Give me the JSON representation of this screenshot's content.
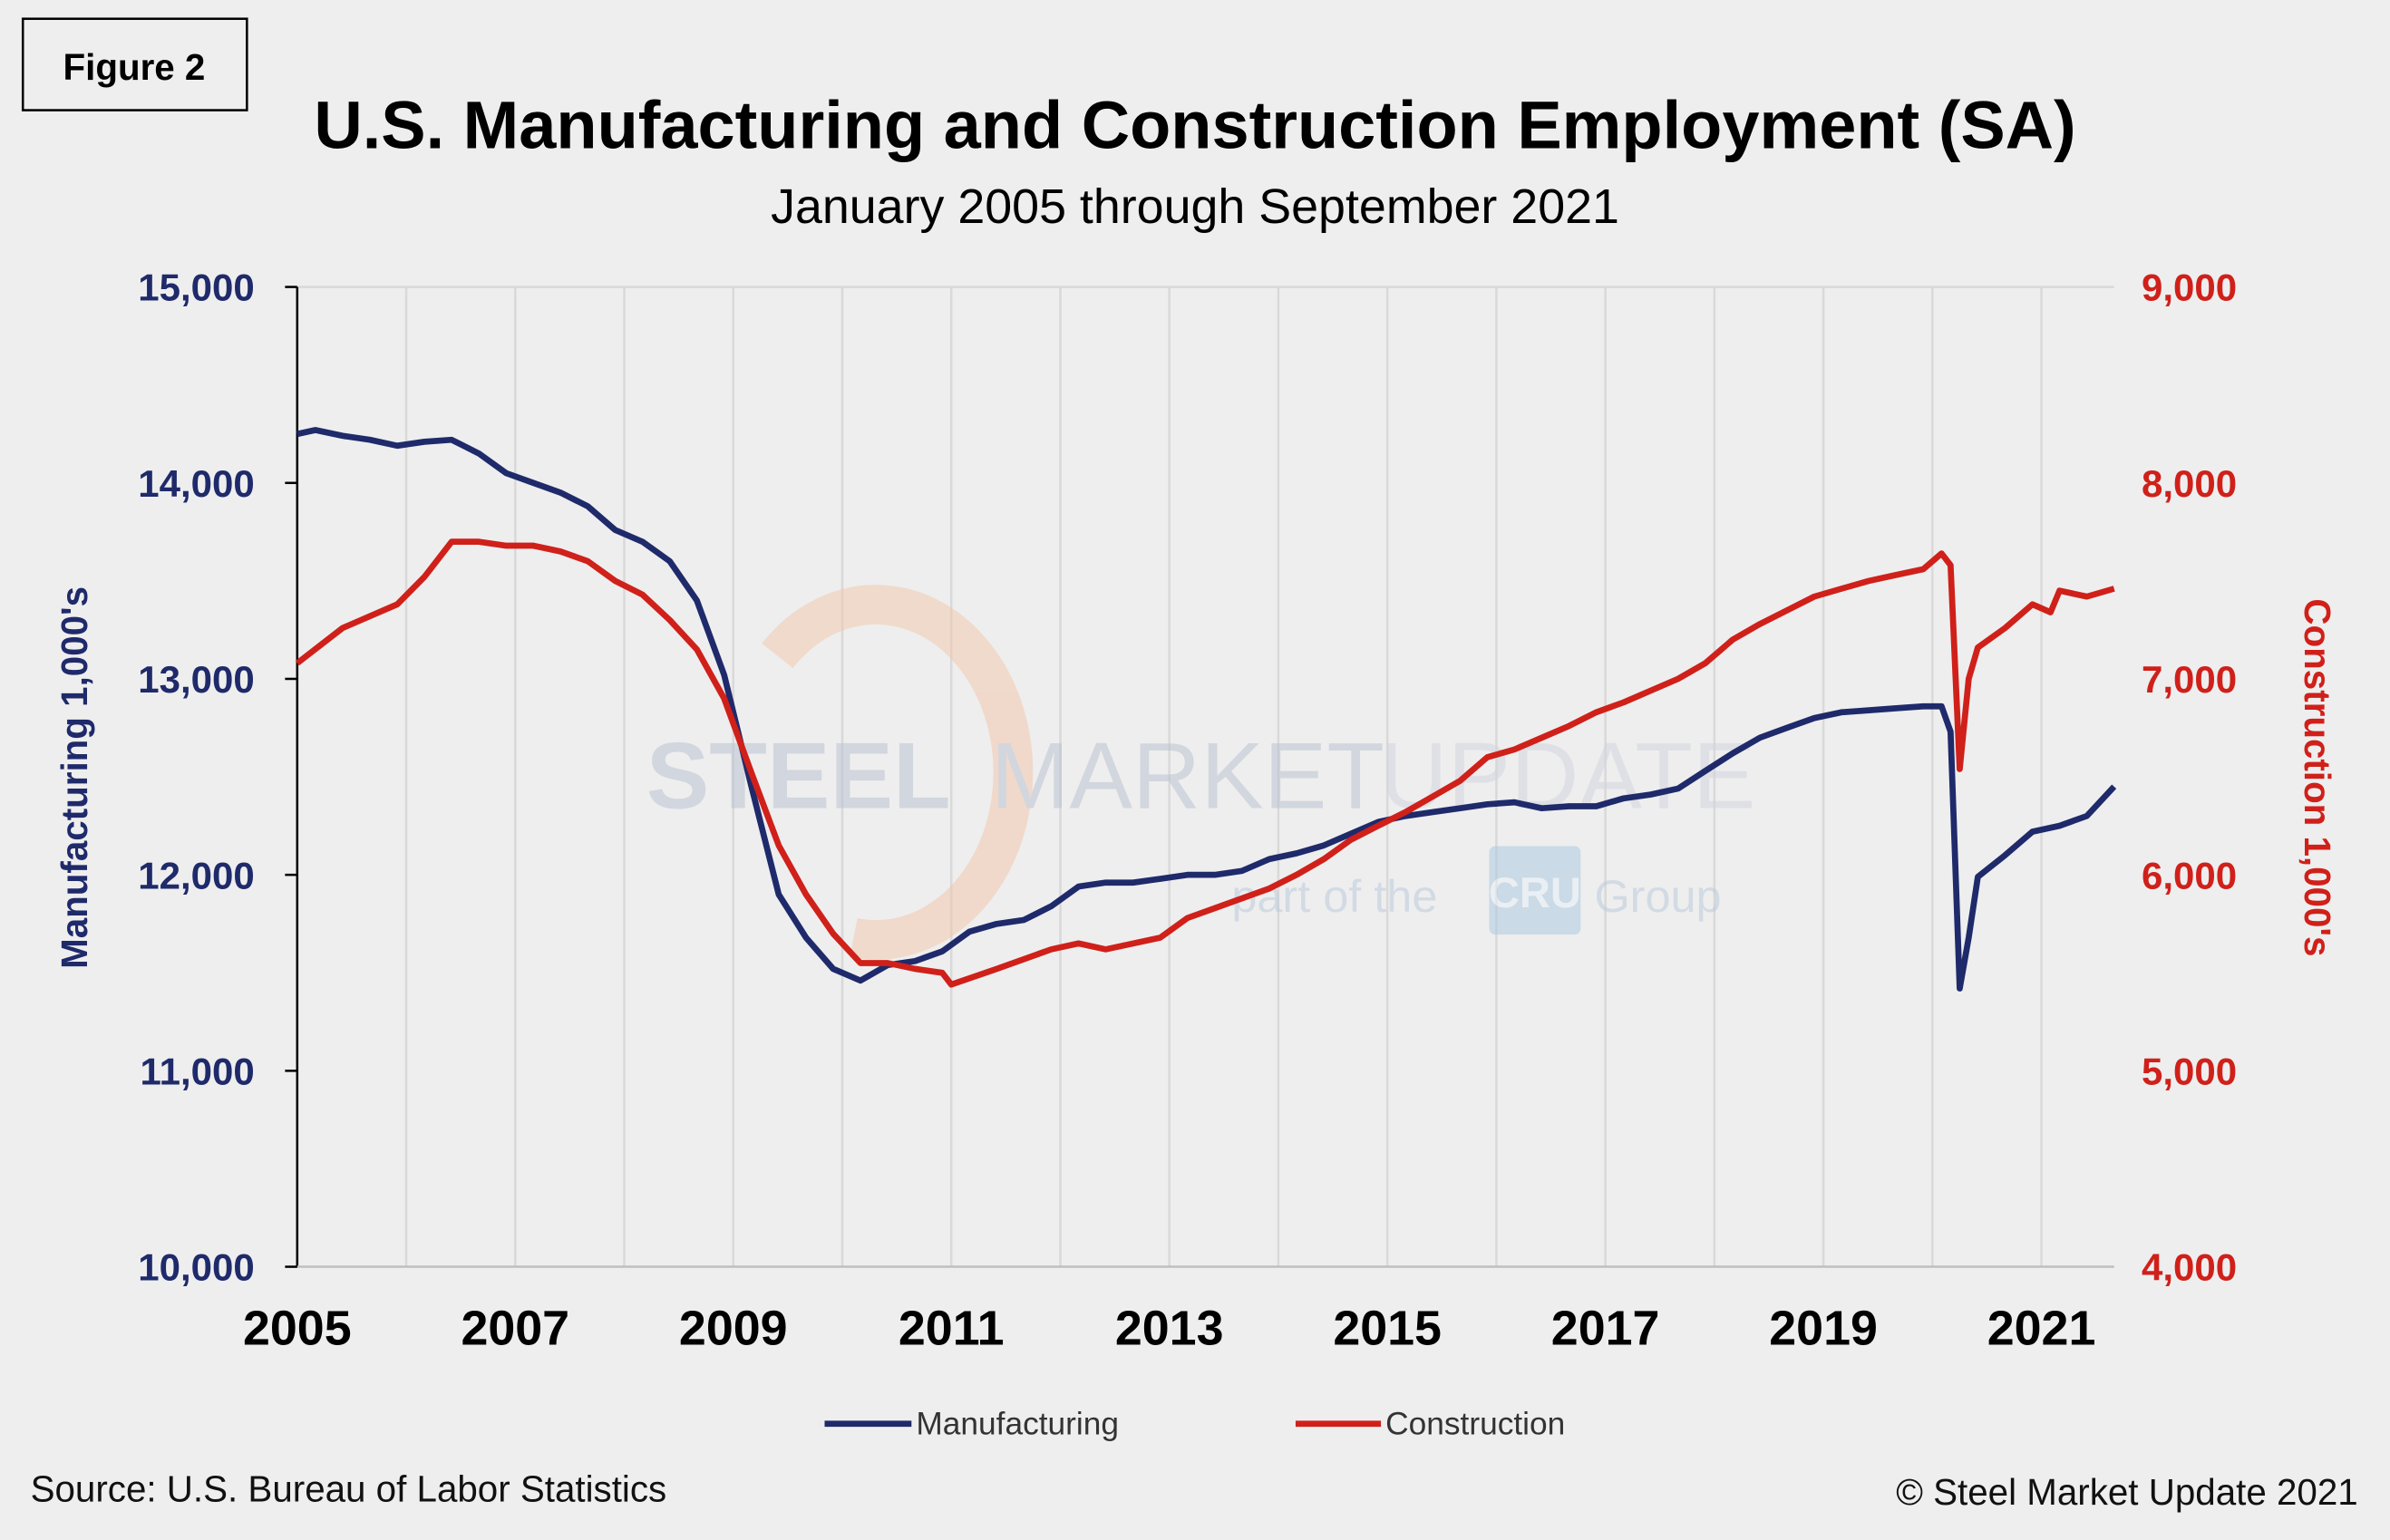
{
  "figure_label": "Figure 2",
  "watermark": {
    "brand": "STEEL MARKET UPDATE",
    "tagline_pre": "part of the",
    "tagline_logo": "CRU",
    "tagline_post": "Group"
  },
  "source": "Source: U.S. Bureau  of Labor Statistics",
  "copyright": "© Steel Market Update 2021",
  "colors": {
    "manufacturing": "#1f2a6b",
    "construction": "#d0201a",
    "background": "#eeeeee",
    "grid": "#d9d9d9"
  },
  "chart_data": {
    "type": "line",
    "title": "U.S. Manufacturing and Construction Employment (SA)",
    "subtitle": "January 2005 through September 2021",
    "ylabel_left": "Manufacturing 1,000's",
    "ylabel_right": "Construction 1,000's",
    "ylim_left": [
      10000,
      15000
    ],
    "ylim_right": [
      4000,
      9000
    ],
    "yticks_left": [
      "10,000",
      "11,000",
      "12,000",
      "13,000",
      "14,000",
      "15,000"
    ],
    "yticks_right": [
      "4,000",
      "5,000",
      "6,000",
      "7,000",
      "8,000",
      "9,000"
    ],
    "xticks": [
      "2005",
      "2007",
      "2009",
      "2011",
      "2013",
      "2015",
      "2017",
      "2019",
      "2021"
    ],
    "xlim": [
      "2005-01",
      "2021-09"
    ],
    "grid": "vertical",
    "legend": "bottom",
    "series": [
      {
        "name": "Manufacturing",
        "axis": "left",
        "points": [
          [
            "2005-01",
            14250
          ],
          [
            "2005-03",
            14270
          ],
          [
            "2005-06",
            14240
          ],
          [
            "2005-09",
            14220
          ],
          [
            "2005-12",
            14190
          ],
          [
            "2006-03",
            14210
          ],
          [
            "2006-06",
            14220
          ],
          [
            "2006-09",
            14150
          ],
          [
            "2006-12",
            14050
          ],
          [
            "2007-03",
            14000
          ],
          [
            "2007-06",
            13950
          ],
          [
            "2007-09",
            13880
          ],
          [
            "2007-12",
            13760
          ],
          [
            "2008-03",
            13700
          ],
          [
            "2008-06",
            13600
          ],
          [
            "2008-09",
            13400
          ],
          [
            "2008-12",
            13020
          ],
          [
            "2009-03",
            12450
          ],
          [
            "2009-06",
            11900
          ],
          [
            "2009-09",
            11680
          ],
          [
            "2009-12",
            11520
          ],
          [
            "2010-03",
            11460
          ],
          [
            "2010-06",
            11540
          ],
          [
            "2010-09",
            11560
          ],
          [
            "2010-12",
            11610
          ],
          [
            "2011-03",
            11710
          ],
          [
            "2011-06",
            11750
          ],
          [
            "2011-09",
            11770
          ],
          [
            "2011-12",
            11840
          ],
          [
            "2012-03",
            11940
          ],
          [
            "2012-06",
            11960
          ],
          [
            "2012-09",
            11960
          ],
          [
            "2012-12",
            11980
          ],
          [
            "2013-03",
            12000
          ],
          [
            "2013-06",
            12000
          ],
          [
            "2013-09",
            12020
          ],
          [
            "2013-12",
            12080
          ],
          [
            "2014-03",
            12110
          ],
          [
            "2014-06",
            12150
          ],
          [
            "2014-09",
            12210
          ],
          [
            "2014-12",
            12270
          ],
          [
            "2015-03",
            12300
          ],
          [
            "2015-06",
            12320
          ],
          [
            "2015-09",
            12340
          ],
          [
            "2015-12",
            12360
          ],
          [
            "2016-03",
            12370
          ],
          [
            "2016-06",
            12340
          ],
          [
            "2016-09",
            12350
          ],
          [
            "2016-12",
            12350
          ],
          [
            "2017-03",
            12390
          ],
          [
            "2017-06",
            12410
          ],
          [
            "2017-09",
            12440
          ],
          [
            "2017-12",
            12530
          ],
          [
            "2018-03",
            12620
          ],
          [
            "2018-06",
            12700
          ],
          [
            "2018-09",
            12750
          ],
          [
            "2018-12",
            12800
          ],
          [
            "2019-03",
            12830
          ],
          [
            "2019-06",
            12840
          ],
          [
            "2019-09",
            12850
          ],
          [
            "2019-12",
            12860
          ],
          [
            "2020-02",
            12860
          ],
          [
            "2020-03",
            12730
          ],
          [
            "2020-04",
            11420
          ],
          [
            "2020-05",
            11680
          ],
          [
            "2020-06",
            11990
          ],
          [
            "2020-09",
            12100
          ],
          [
            "2020-12",
            12220
          ],
          [
            "2021-03",
            12250
          ],
          [
            "2021-06",
            12300
          ],
          [
            "2021-09",
            12450
          ]
        ]
      },
      {
        "name": "Construction",
        "axis": "right",
        "points": [
          [
            "2005-01",
            7080
          ],
          [
            "2005-06",
            7260
          ],
          [
            "2005-12",
            7380
          ],
          [
            "2006-03",
            7520
          ],
          [
            "2006-06",
            7700
          ],
          [
            "2006-09",
            7700
          ],
          [
            "2006-12",
            7680
          ],
          [
            "2007-03",
            7680
          ],
          [
            "2007-06",
            7650
          ],
          [
            "2007-09",
            7600
          ],
          [
            "2007-12",
            7500
          ],
          [
            "2008-03",
            7430
          ],
          [
            "2008-06",
            7300
          ],
          [
            "2008-09",
            7150
          ],
          [
            "2008-12",
            6900
          ],
          [
            "2009-03",
            6520
          ],
          [
            "2009-06",
            6150
          ],
          [
            "2009-09",
            5900
          ],
          [
            "2009-12",
            5700
          ],
          [
            "2010-03",
            5550
          ],
          [
            "2010-06",
            5550
          ],
          [
            "2010-09",
            5520
          ],
          [
            "2010-12",
            5500
          ],
          [
            "2011-01",
            5440
          ],
          [
            "2011-06",
            5520
          ],
          [
            "2011-12",
            5620
          ],
          [
            "2012-03",
            5650
          ],
          [
            "2012-06",
            5620
          ],
          [
            "2012-12",
            5680
          ],
          [
            "2013-03",
            5780
          ],
          [
            "2013-06",
            5830
          ],
          [
            "2013-12",
            5930
          ],
          [
            "2014-03",
            6000
          ],
          [
            "2014-06",
            6080
          ],
          [
            "2014-09",
            6180
          ],
          [
            "2014-12",
            6250
          ],
          [
            "2015-03",
            6320
          ],
          [
            "2015-06",
            6400
          ],
          [
            "2015-09",
            6480
          ],
          [
            "2015-12",
            6600
          ],
          [
            "2016-03",
            6640
          ],
          [
            "2016-06",
            6700
          ],
          [
            "2016-09",
            6760
          ],
          [
            "2016-12",
            6830
          ],
          [
            "2017-03",
            6880
          ],
          [
            "2017-06",
            6940
          ],
          [
            "2017-09",
            7000
          ],
          [
            "2017-12",
            7080
          ],
          [
            "2018-03",
            7200
          ],
          [
            "2018-06",
            7280
          ],
          [
            "2018-09",
            7350
          ],
          [
            "2018-12",
            7420
          ],
          [
            "2019-03",
            7460
          ],
          [
            "2019-06",
            7500
          ],
          [
            "2019-09",
            7530
          ],
          [
            "2019-12",
            7560
          ],
          [
            "2020-02",
            7640
          ],
          [
            "2020-03",
            7580
          ],
          [
            "2020-04",
            6540
          ],
          [
            "2020-05",
            7000
          ],
          [
            "2020-06",
            7160
          ],
          [
            "2020-09",
            7260
          ],
          [
            "2020-12",
            7380
          ],
          [
            "2021-02",
            7340
          ],
          [
            "2021-03",
            7450
          ],
          [
            "2021-06",
            7420
          ],
          [
            "2021-09",
            7460
          ]
        ]
      }
    ]
  }
}
